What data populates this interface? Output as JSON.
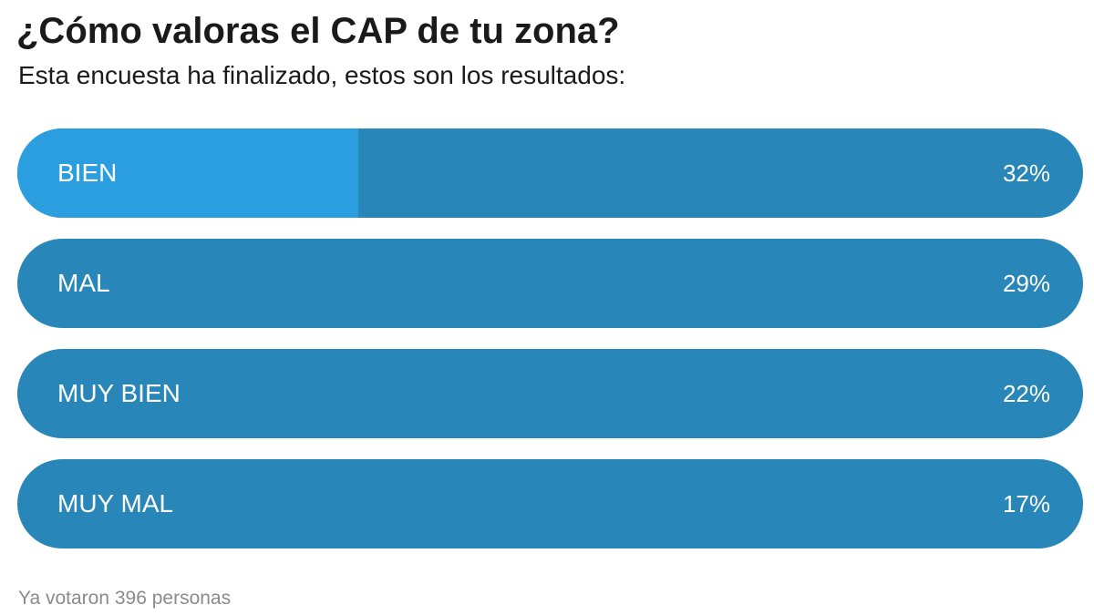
{
  "poll": {
    "title": "¿Cómo valoras el CAP de tu zona?",
    "subtitle": "Esta encuesta ha finalizado, estos son los resultados:",
    "options": [
      {
        "label": "BIEN",
        "percent_label": "32%",
        "percent": 32,
        "winner": true
      },
      {
        "label": "MAL",
        "percent_label": "29%",
        "percent": 29,
        "winner": false
      },
      {
        "label": "MUY BIEN",
        "percent_label": "22%",
        "percent": 22,
        "winner": false
      },
      {
        "label": "MUY MAL",
        "percent_label": "17%",
        "percent": 17,
        "winner": false
      }
    ],
    "footer": "Ya votaron 396 personas"
  },
  "colors": {
    "bar_background": "#2887b8",
    "bar_fill_winner": "#2b9ee0",
    "text_on_bar": "#ffffff",
    "footer_text": "#8a8a8a"
  }
}
